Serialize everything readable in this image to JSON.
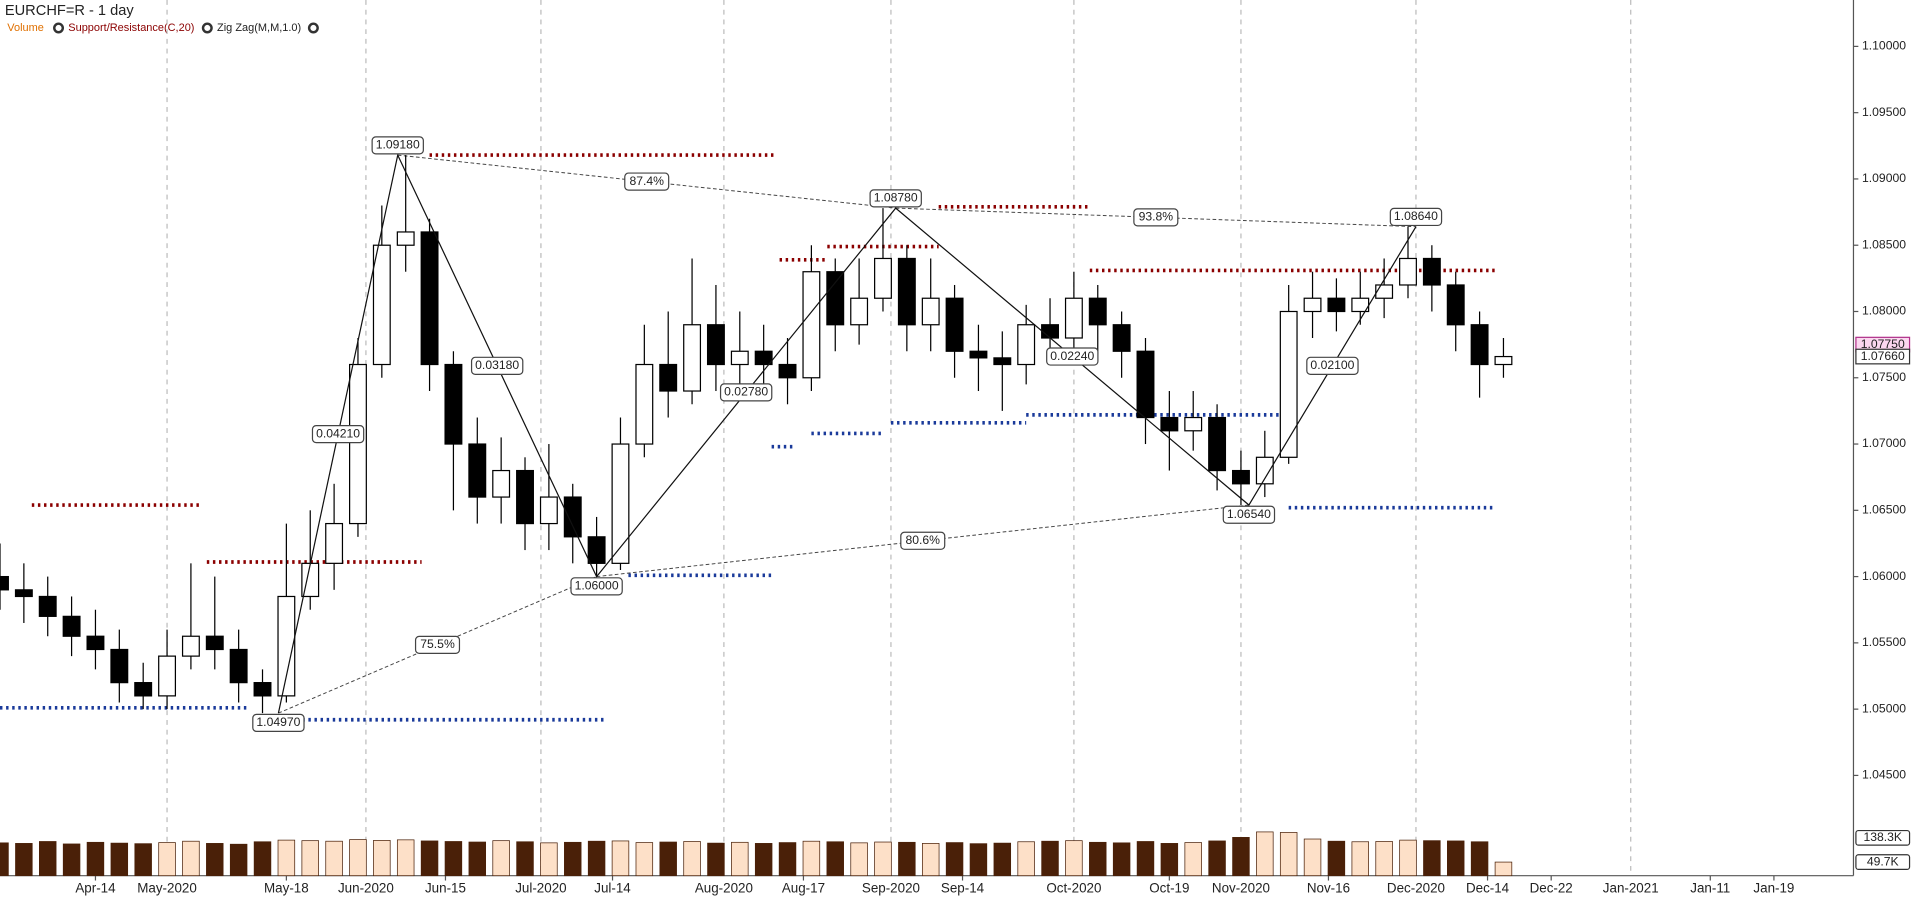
{
  "chart_data": {
    "type": "candlestick",
    "title": "EURCHF=R - 1 day",
    "indicators": [
      "Volume",
      "Support/Resistance(C,20)",
      "Zig Zag(M,M,1.0)"
    ],
    "x": [
      -12,
      -9,
      -6,
      -3,
      0,
      3,
      6,
      9,
      12,
      15,
      18,
      21,
      24,
      27,
      30,
      33,
      36,
      39,
      42,
      45,
      48,
      51,
      54,
      57,
      60,
      63,
      66,
      69,
      72,
      75,
      78,
      81,
      84,
      87,
      90,
      93,
      96,
      99,
      102,
      105,
      108,
      111,
      114,
      117,
      120,
      123,
      126,
      129,
      132,
      135,
      138,
      141,
      144,
      147,
      150,
      153,
      156,
      159,
      162,
      165,
      168,
      171,
      174,
      177
    ],
    "open": [
      1.06,
      1.059,
      1.0585,
      1.057,
      1.0555,
      1.0545,
      1.052,
      1.051,
      1.054,
      1.0555,
      1.0545,
      1.052,
      1.051,
      1.0585,
      1.061,
      1.064,
      1.076,
      1.085,
      1.086,
      1.076,
      1.07,
      1.066,
      1.068,
      1.064,
      1.066,
      1.063,
      1.061,
      1.07,
      1.076,
      1.074,
      1.079,
      1.076,
      1.077,
      1.076,
      1.075,
      1.083,
      1.079,
      1.081,
      1.084,
      1.079,
      1.081,
      1.077,
      1.0765,
      1.076,
      1.079,
      1.078,
      1.081,
      1.079,
      1.077,
      1.072,
      1.071,
      1.072,
      1.068,
      1.067,
      1.069,
      1.08,
      1.081,
      1.08,
      1.081,
      1.082,
      1.084,
      1.082,
      1.079,
      1.076
    ],
    "high": [
      1.0625,
      1.061,
      1.06,
      1.0585,
      1.0575,
      1.056,
      1.0535,
      1.056,
      1.061,
      1.06,
      1.056,
      1.053,
      1.064,
      1.065,
      1.067,
      1.078,
      1.088,
      1.0918,
      1.087,
      1.077,
      1.072,
      1.0705,
      1.069,
      1.07,
      1.067,
      1.0645,
      1.072,
      1.079,
      1.08,
      1.084,
      1.082,
      1.08,
      1.079,
      1.078,
      1.085,
      1.084,
      1.084,
      1.0878,
      1.085,
      1.084,
      1.082,
      1.079,
      1.0785,
      1.0805,
      1.081,
      1.083,
      1.082,
      1.08,
      1.078,
      1.074,
      1.074,
      1.073,
      1.0695,
      1.071,
      1.082,
      1.083,
      1.0825,
      1.083,
      1.084,
      1.0864,
      1.085,
      1.083,
      1.08,
      1.078
    ],
    "low": [
      1.0575,
      1.0565,
      1.0555,
      1.054,
      1.053,
      1.0505,
      1.05,
      1.05,
      1.053,
      1.053,
      1.0505,
      1.0497,
      1.0505,
      1.0575,
      1.059,
      1.063,
      1.075,
      1.083,
      1.074,
      1.065,
      1.064,
      1.064,
      1.062,
      1.062,
      1.061,
      1.06,
      1.0605,
      1.069,
      1.072,
      1.073,
      1.074,
      1.074,
      1.0735,
      1.073,
      1.074,
      1.077,
      1.0775,
      1.08,
      1.077,
      1.077,
      1.075,
      1.074,
      1.0725,
      1.0745,
      1.076,
      1.077,
      1.077,
      1.075,
      1.07,
      1.068,
      1.0695,
      1.0665,
      1.0654,
      1.066,
      1.0685,
      1.078,
      1.0785,
      1.079,
      1.0795,
      1.081,
      1.08,
      1.077,
      1.0735,
      1.075
    ],
    "close": [
      1.059,
      1.0585,
      1.057,
      1.0555,
      1.0545,
      1.052,
      1.051,
      1.054,
      1.0555,
      1.0545,
      1.052,
      1.051,
      1.0585,
      1.061,
      1.064,
      1.076,
      1.085,
      1.086,
      1.076,
      1.07,
      1.066,
      1.068,
      1.064,
      1.066,
      1.063,
      1.061,
      1.07,
      1.076,
      1.074,
      1.079,
      1.076,
      1.077,
      1.076,
      1.075,
      1.083,
      1.079,
      1.081,
      1.084,
      1.079,
      1.081,
      1.077,
      1.0765,
      1.076,
      1.079,
      1.078,
      1.081,
      1.079,
      1.077,
      1.072,
      1.071,
      1.072,
      1.068,
      1.067,
      1.069,
      1.08,
      1.081,
      1.08,
      1.081,
      1.082,
      1.084,
      1.082,
      1.079,
      1.076,
      1.0766
    ],
    "xlim": [
      -12,
      221
    ],
    "ylim": [
      1.0434,
      1.1035
    ],
    "yticks": [
      {
        "value": 1.045,
        "label": "1.04500"
      },
      {
        "value": 1.05,
        "label": "1.05000"
      },
      {
        "value": 1.055,
        "label": "1.05500"
      },
      {
        "value": 1.06,
        "label": "1.06000"
      },
      {
        "value": 1.065,
        "label": "1.06500"
      },
      {
        "value": 1.07,
        "label": "1.07000"
      },
      {
        "value": 1.075,
        "label": "1.07500"
      },
      {
        "value": 1.08,
        "label": "1.08000"
      },
      {
        "value": 1.085,
        "label": "1.08500"
      },
      {
        "value": 1.09,
        "label": "1.09000"
      },
      {
        "value": 1.095,
        "label": "1.09500"
      },
      {
        "value": 1.1,
        "label": "1.10000"
      }
    ],
    "xticks": [
      {
        "value": 9,
        "label": "May-2020"
      },
      {
        "value": 34,
        "label": "Jun-2020"
      },
      {
        "value": 56,
        "label": "Jul-2020"
      },
      {
        "value": 79,
        "label": "Aug-2020"
      },
      {
        "value": 100,
        "label": "Sep-2020"
      },
      {
        "value": 123,
        "label": "Oct-2020"
      },
      {
        "value": 144,
        "label": "Nov-2020"
      },
      {
        "value": 166,
        "label": "Dec-2020"
      },
      {
        "value": 193,
        "label": "Jan-2021"
      }
    ],
    "xticks_minor": [
      {
        "value": 0,
        "label": "Apr-14"
      },
      {
        "value": 24,
        "label": "May-18"
      },
      {
        "value": 44,
        "label": "Jun-15"
      },
      {
        "value": 65,
        "label": "Jul-14"
      },
      {
        "value": 89,
        "label": "Aug-17"
      },
      {
        "value": 109,
        "label": "Sep-14"
      },
      {
        "value": 135,
        "label": "Oct-19"
      },
      {
        "value": 155,
        "label": "Nov-16"
      },
      {
        "value": 175,
        "label": "Dec-14"
      },
      {
        "value": 183,
        "label": "Dec-22"
      },
      {
        "value": 203,
        "label": "Jan-11"
      },
      {
        "value": 211,
        "label": "Jan-19"
      }
    ],
    "volume": {
      "values": [
        120000,
        118000,
        125000,
        116000,
        122000,
        119000,
        117000,
        121000,
        126000,
        118000,
        115000,
        124000,
        130000,
        128000,
        126000,
        132000,
        129000,
        131000,
        127000,
        125000,
        123000,
        128000,
        124000,
        120000,
        122000,
        126000,
        127000,
        121000,
        123000,
        125000,
        119000,
        122000,
        118000,
        121000,
        126000,
        124000,
        120000,
        123000,
        122000,
        118000,
        121000,
        117000,
        119000,
        124000,
        126000,
        128000,
        122000,
        120000,
        125000,
        118000,
        121000,
        127000,
        140000,
        160000,
        158000,
        134000,
        126000,
        124000,
        125000,
        130000,
        128000,
        127000,
        124000,
        49700
      ],
      "ylim": [
        0,
        266800
      ],
      "yticks": [
        {
          "value": 138300,
          "label": "138.3K"
        },
        {
          "value": 49700,
          "label": "49.7K"
        }
      ]
    },
    "zigzag": {
      "x": [
        23,
        38,
        63,
        100.6,
        145,
        166
      ],
      "values": [
        1.0497,
        1.0918,
        1.06,
        1.0878,
        1.0654,
        1.0864
      ],
      "value_labels": [
        "1.04970",
        "1.09180",
        "1.06000",
        "1.08780",
        "1.06540",
        "1.08640"
      ],
      "legs": [
        {
          "value": 0.0421,
          "label": "0.04210"
        },
        {
          "value": 0.0318,
          "label": "0.03180"
        },
        {
          "value": 0.0278,
          "label": "0.02780"
        },
        {
          "value": 0.0224,
          "label": "0.02240"
        },
        {
          "value": 0.021,
          "label": "0.02100"
        }
      ],
      "ratios": [
        {
          "value": 75.5,
          "label": "75.5%"
        },
        {
          "value": 87.4,
          "label": "87.4%"
        },
        {
          "value": 80.6,
          "label": "80.6%"
        },
        {
          "value": 93.8,
          "label": "93.8%"
        }
      ]
    },
    "resistance": {
      "color": "#8b0000",
      "levels": [
        {
          "y": 1.0918,
          "x": [
            42,
            85.6
          ]
        },
        {
          "y": 1.0654,
          "x": [
            -8,
            13
          ]
        },
        {
          "y": 1.0611,
          "x": [
            14,
            41
          ]
        },
        {
          "y": 1.0839,
          "x": [
            86,
            92
          ]
        },
        {
          "y": 1.0849,
          "x": [
            92,
            106
          ]
        },
        {
          "y": 1.0879,
          "x": [
            106,
            125
          ]
        },
        {
          "y": 1.0831,
          "x": [
            125,
            176
          ]
        }
      ]
    },
    "support": {
      "color": "#1a3a9a",
      "levels": [
        {
          "y": 1.0492,
          "x": [
            26,
            64
          ]
        },
        {
          "y": 1.0501,
          "x": [
            -12,
            19
          ]
        },
        {
          "y": 1.0601,
          "x": [
            67,
            85
          ]
        },
        {
          "y": 1.0698,
          "x": [
            85,
            88
          ]
        },
        {
          "y": 1.0708,
          "x": [
            90,
            99
          ]
        },
        {
          "y": 1.0716,
          "x": [
            100,
            117
          ]
        },
        {
          "y": 1.0722,
          "x": [
            117,
            149
          ]
        },
        {
          "y": 1.0652,
          "x": [
            150,
            176
          ]
        }
      ]
    },
    "last_prices": [
      {
        "value": 1.0775,
        "label": "1.07750"
      },
      {
        "value": 1.0766,
        "label": "1.07660"
      }
    ]
  }
}
